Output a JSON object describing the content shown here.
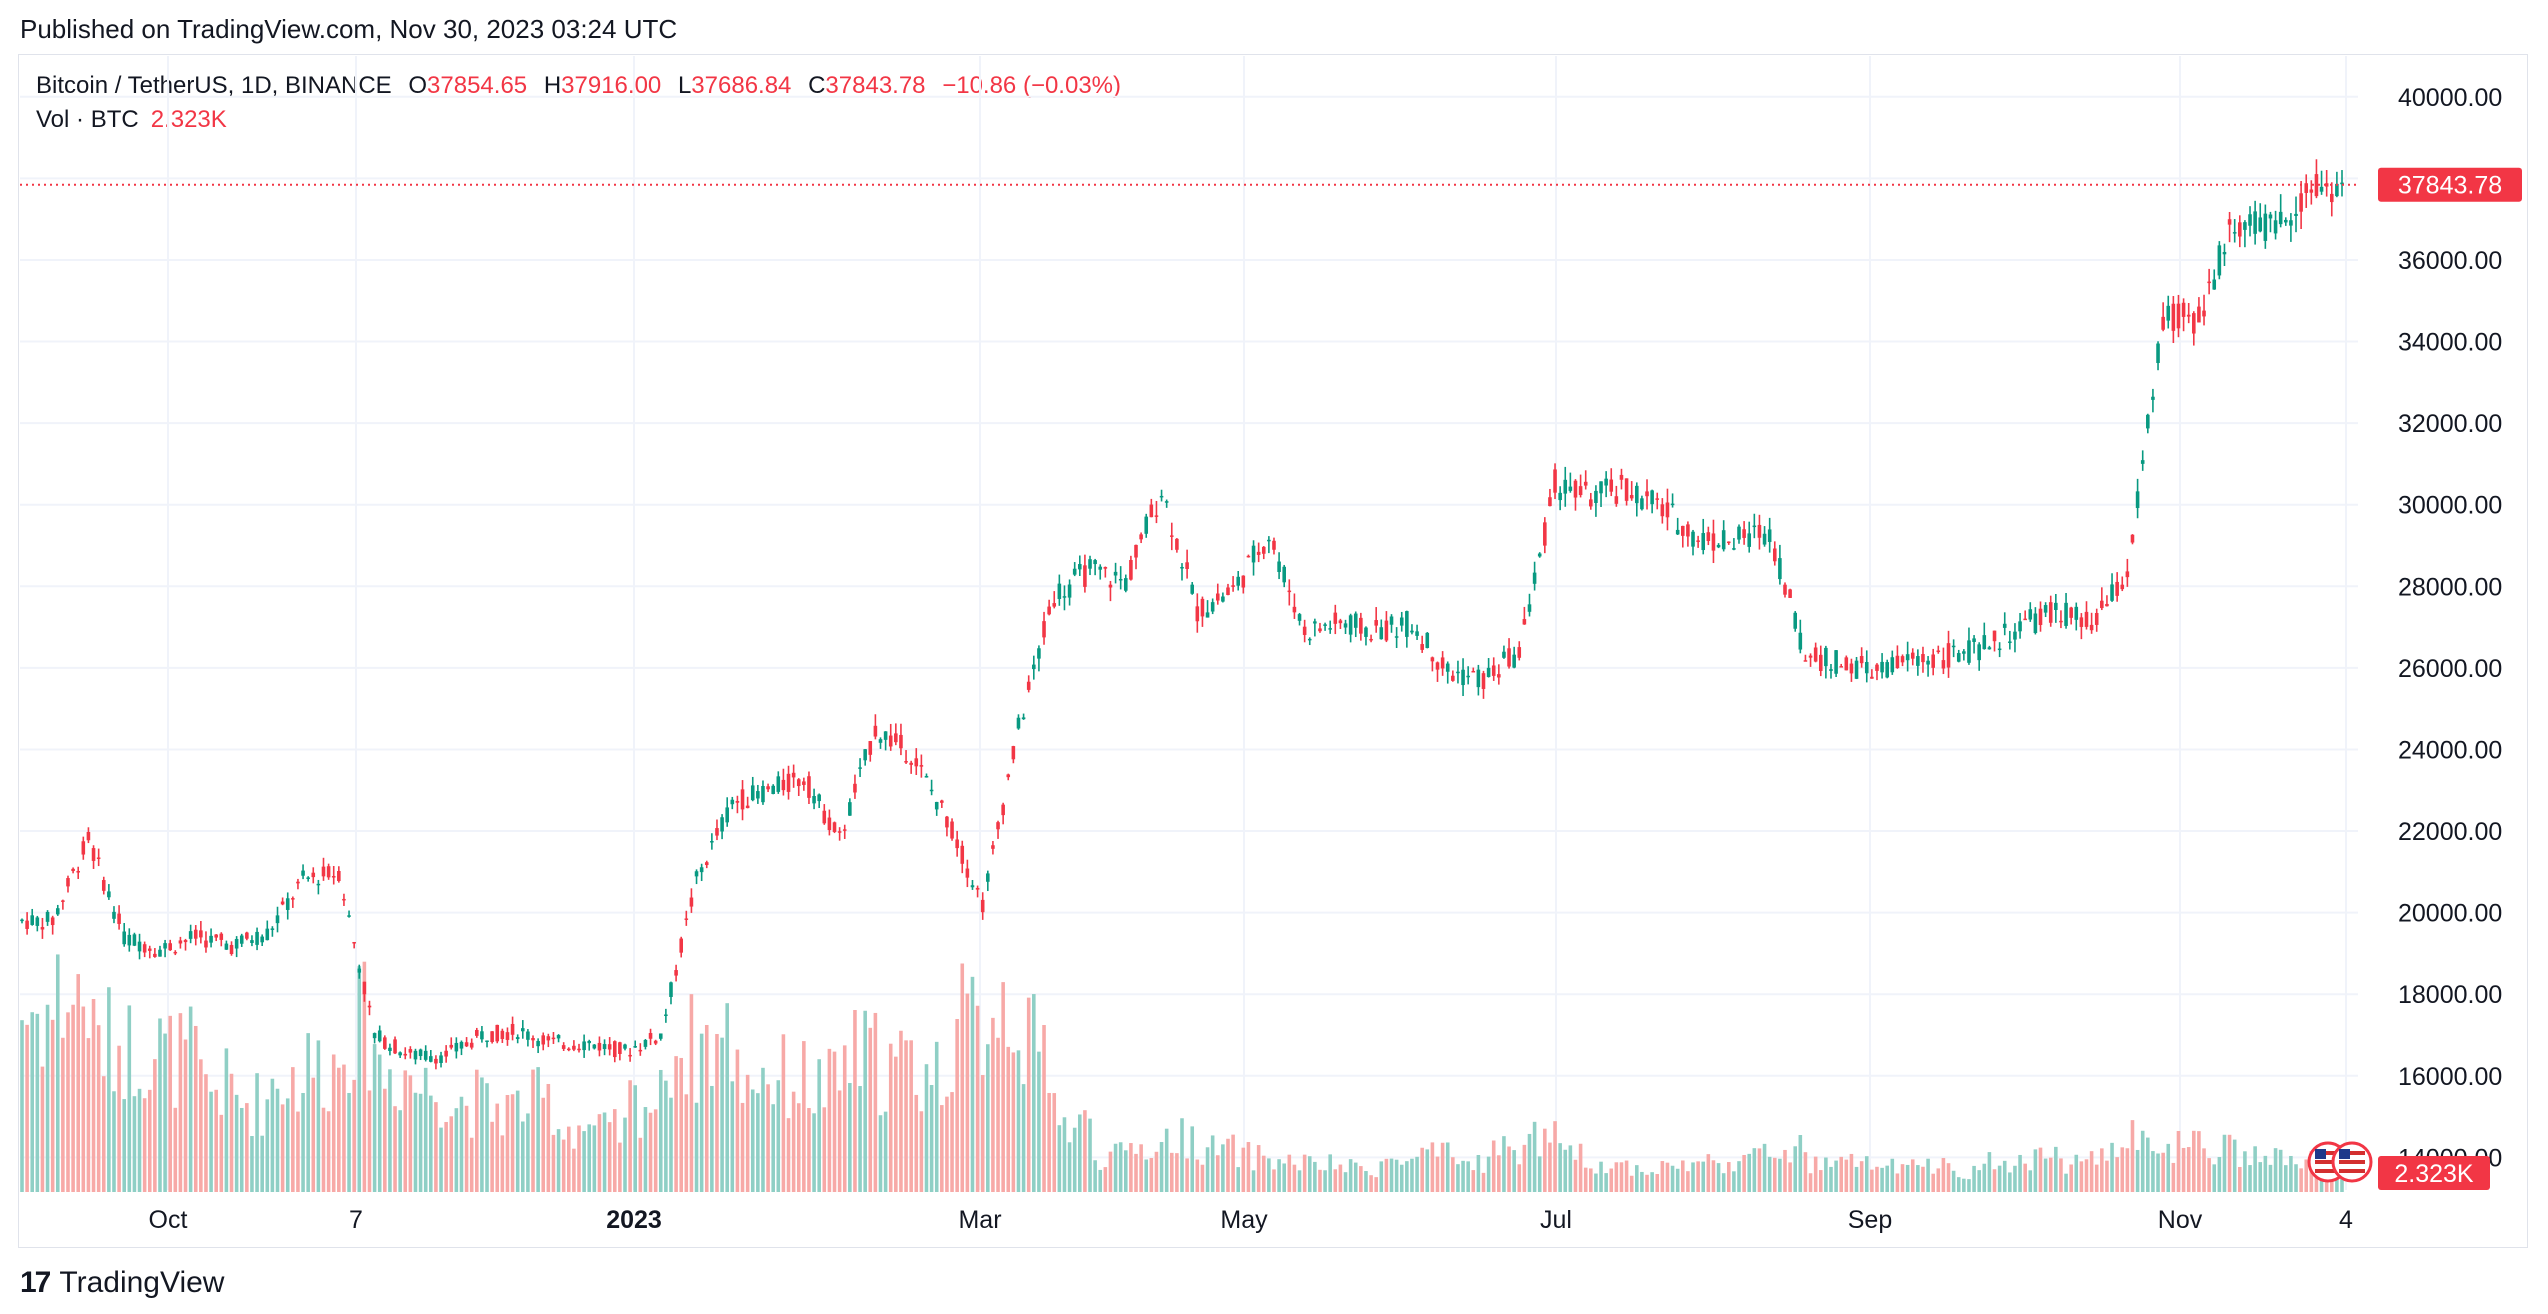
{
  "published": "Published on TradingView.com, Nov 30, 2023 03:24 UTC",
  "legend": {
    "symbol": "Bitcoin / TetherUS, 1D, BINANCE",
    "o_label": "O",
    "o": "37854.65",
    "h_label": "H",
    "h": "37916.00",
    "l_label": "L",
    "l": "37686.84",
    "c_label": "C",
    "c": "37843.78",
    "change": "−10.86 (−0.03%)",
    "vol_label": "Vol · BTC",
    "vol_value": "2.323K"
  },
  "brand": {
    "logo": "17",
    "name": "TradingView"
  },
  "colors": {
    "up": "#089981",
    "down": "#f23645",
    "up_vol": "#8fcfc5",
    "down_vol": "#f7a9a7",
    "grid": "#f0f3fa",
    "price_line": "#f23645"
  },
  "chart_data": {
    "type": "candlestick",
    "title": "Bitcoin / TetherUS, 1D, BINANCE",
    "y_axis": {
      "ticks": [
        14000,
        16000,
        18000,
        20000,
        22000,
        24000,
        26000,
        28000,
        30000,
        32000,
        34000,
        36000,
        38000,
        40000
      ],
      "tick_labels": [
        "14000.00",
        "16000.00",
        "18000.00",
        "20000.00",
        "22000.00",
        "24000.00",
        "26000.00",
        "28000.00",
        "30000.00",
        "32000.00",
        "34000.00",
        "36000.00",
        "",
        "40000.00"
      ],
      "range": [
        13200,
        41000
      ],
      "side": "right"
    },
    "x_axis": {
      "tick_labels": [
        "Oct",
        "7",
        "2023",
        "Mar",
        "May",
        "Jul",
        "Sep",
        "Nov",
        "4"
      ]
    },
    "last_price": {
      "value": 37843.78,
      "label": "37843.78"
    },
    "last_volume": {
      "label": "2.323K"
    },
    "grid": true,
    "series": [
      {
        "name": "price (approx. weekly closes)",
        "x": [
          "2022-09-04",
          "2022-09-11",
          "2022-09-18",
          "2022-09-25",
          "2022-10-02",
          "2022-10-09",
          "2022-10-16",
          "2022-10-23",
          "2022-10-30",
          "2022-11-06",
          "2022-11-13",
          "2022-11-20",
          "2022-11-27",
          "2022-12-04",
          "2022-12-11",
          "2022-12-18",
          "2022-12-25",
          "2023-01-01",
          "2023-01-08",
          "2023-01-15",
          "2023-01-22",
          "2023-01-29",
          "2023-02-05",
          "2023-02-12",
          "2023-02-19",
          "2023-02-26",
          "2023-03-05",
          "2023-03-12",
          "2023-03-19",
          "2023-03-26",
          "2023-04-02",
          "2023-04-09",
          "2023-04-16",
          "2023-04-23",
          "2023-04-30",
          "2023-05-07",
          "2023-05-14",
          "2023-05-21",
          "2023-05-28",
          "2023-06-04",
          "2023-06-11",
          "2023-06-18",
          "2023-06-25",
          "2023-07-02",
          "2023-07-09",
          "2023-07-16",
          "2023-07-23",
          "2023-07-30",
          "2023-08-06",
          "2023-08-13",
          "2023-08-20",
          "2023-08-27",
          "2023-09-03",
          "2023-09-10",
          "2023-09-17",
          "2023-09-24",
          "2023-10-01",
          "2023-10-08",
          "2023-10-15",
          "2023-10-22",
          "2023-10-29",
          "2023-11-05",
          "2023-11-12",
          "2023-11-19",
          "2023-11-26"
        ],
        "close": [
          19800,
          21800,
          19400,
          19100,
          19400,
          19200,
          19500,
          20800,
          21000,
          17000,
          16500,
          16500,
          17000,
          17100,
          16800,
          16800,
          16600,
          17000,
          20800,
          22700,
          23000,
          23300,
          21800,
          24500,
          23900,
          22300,
          20200,
          24500,
          27800,
          28400,
          28100,
          30400,
          27400,
          27900,
          29300,
          26900,
          27100,
          26900,
          27100,
          25900,
          25700,
          26400,
          30500,
          30200,
          30400,
          29900,
          29200,
          29100,
          29400,
          26300,
          26100,
          25900,
          26200,
          26300,
          26500,
          27000,
          27400,
          27000,
          28300,
          34500,
          34600,
          37000,
          36700,
          37700,
          37840
        ],
        "volume_k": [
          60,
          65,
          50,
          48,
          45,
          35,
          30,
          38,
          42,
          55,
          40,
          35,
          30,
          28,
          30,
          22,
          20,
          30,
          48,
          50,
          40,
          38,
          35,
          45,
          42,
          40,
          55,
          65,
          48,
          22,
          12,
          15,
          18,
          14,
          12,
          10,
          9,
          8,
          10,
          12,
          10,
          14,
          18,
          12,
          9,
          8,
          9,
          10,
          12,
          14,
          9,
          10,
          8,
          9,
          7,
          10,
          12,
          10,
          14,
          18,
          15,
          14,
          12,
          11,
          10
        ]
      }
    ]
  }
}
